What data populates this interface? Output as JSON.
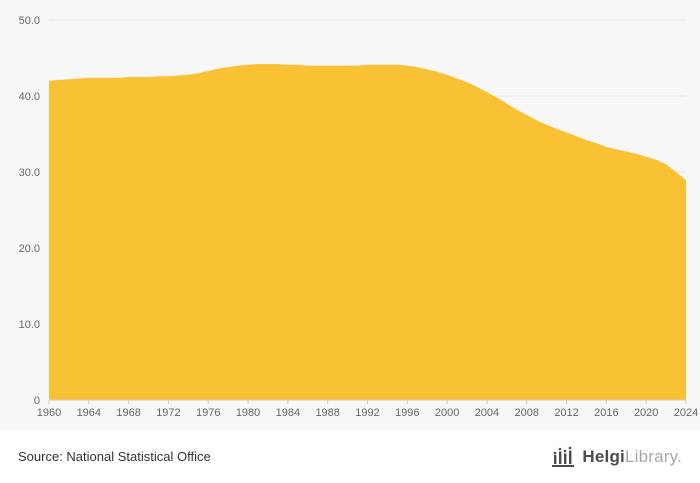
{
  "colors": {
    "background": "#f7f7f7",
    "footer_background": "#ffffff",
    "area_fill": "#f9c235",
    "grid": "#e4e4e4",
    "axis_line": "#cccccc",
    "axis_text": "#666666",
    "source_text": "#333333",
    "logo_dark": "#4d4d4d",
    "logo_light": "#a8a8a8"
  },
  "footer": {
    "source": "Source: National Statistical Office",
    "logo": {
      "brand_bold": "Helgi",
      "brand_light": "Library."
    }
  },
  "chart_data": {
    "type": "area",
    "title": "",
    "xlabel": "",
    "ylabel": "",
    "legend": "none",
    "grid": "horizontal",
    "xlim": [
      1960,
      2024
    ],
    "ylim": [
      0,
      50
    ],
    "y_ticks": [
      0,
      10,
      20,
      30,
      40,
      50
    ],
    "y_tick_labels": [
      "0",
      "10.0",
      "20.0",
      "30.0",
      "40.0",
      "50.0"
    ],
    "x_tick_labels": [
      "1960",
      "1964",
      "1968",
      "1972",
      "1976",
      "1980",
      "1984",
      "1988",
      "1992",
      "1996",
      "2000",
      "2004",
      "2008",
      "2012",
      "2016",
      "2020",
      "2024"
    ],
    "x": [
      1960,
      1961,
      1962,
      1963,
      1964,
      1965,
      1966,
      1967,
      1968,
      1969,
      1970,
      1971,
      1972,
      1973,
      1974,
      1975,
      1976,
      1977,
      1978,
      1979,
      1980,
      1981,
      1982,
      1983,
      1984,
      1985,
      1986,
      1987,
      1988,
      1989,
      1990,
      1991,
      1992,
      1993,
      1994,
      1995,
      1996,
      1997,
      1998,
      1999,
      2000,
      2001,
      2002,
      2003,
      2004,
      2005,
      2006,
      2007,
      2008,
      2009,
      2010,
      2011,
      2012,
      2013,
      2014,
      2015,
      2016,
      2017,
      2018,
      2019,
      2020,
      2021,
      2022,
      2023,
      2024
    ],
    "values": [
      42.0,
      42.1,
      42.2,
      42.3,
      42.4,
      42.4,
      42.4,
      42.4,
      42.5,
      42.5,
      42.5,
      42.6,
      42.6,
      42.7,
      42.8,
      43.0,
      43.3,
      43.6,
      43.8,
      44.0,
      44.1,
      44.2,
      44.2,
      44.2,
      44.1,
      44.1,
      44.0,
      44.0,
      44.0,
      44.0,
      44.0,
      44.0,
      44.1,
      44.1,
      44.1,
      44.1,
      44.0,
      43.8,
      43.5,
      43.2,
      42.8,
      42.3,
      41.8,
      41.2,
      40.5,
      39.8,
      39.0,
      38.2,
      37.5,
      36.8,
      36.2,
      35.7,
      35.2,
      34.7,
      34.2,
      33.8,
      33.3,
      33.0,
      32.7,
      32.4,
      32.0,
      31.6,
      31.0,
      30.0,
      28.9
    ]
  }
}
